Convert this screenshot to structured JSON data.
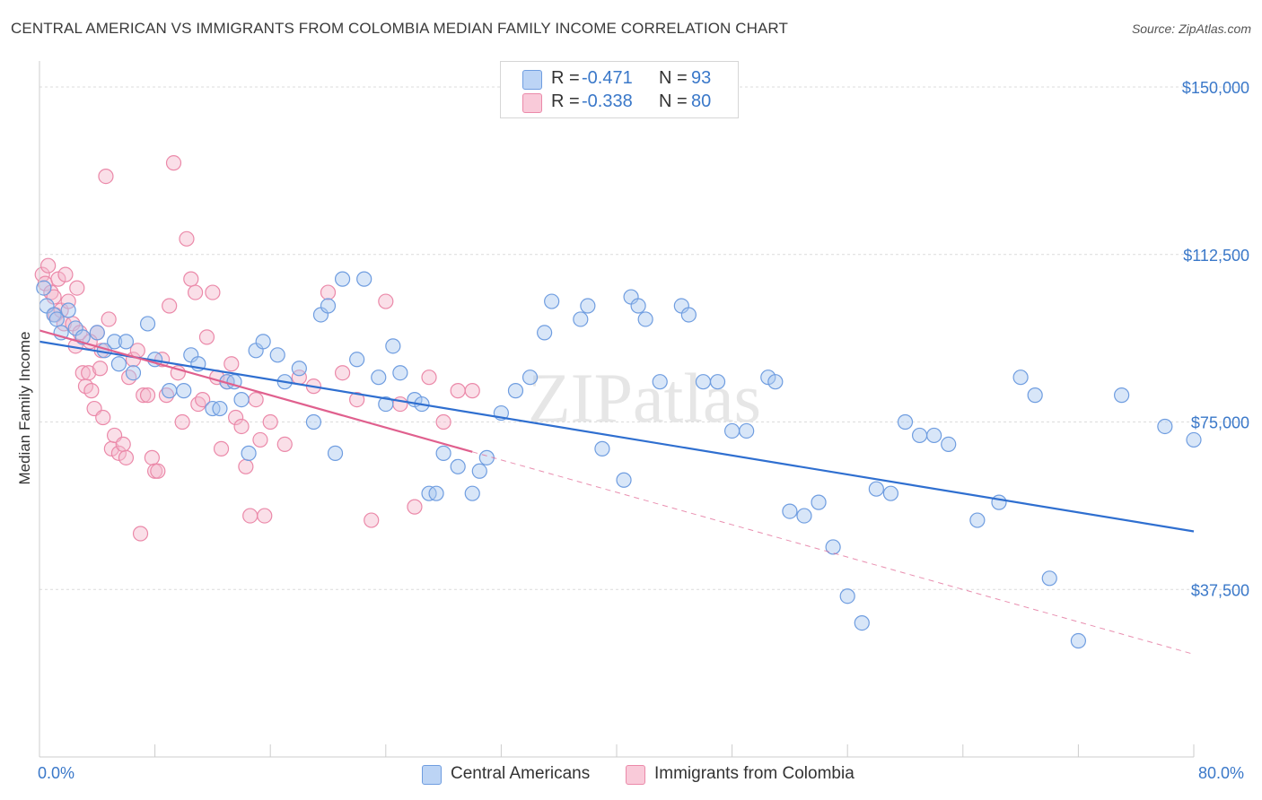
{
  "title": "CENTRAL AMERICAN VS IMMIGRANTS FROM COLOMBIA MEDIAN FAMILY INCOME CORRELATION CHART",
  "source": "Source: ZipAtlas.com",
  "watermark": "ZIPatlas",
  "legend": {
    "r_label": "R =",
    "n_label": "N =",
    "entries": [
      {
        "r": "-0.471",
        "n": "93"
      },
      {
        "r": "-0.338",
        "n": "80"
      }
    ]
  },
  "colors": {
    "blue_fill": "#a9c8f0",
    "blue_stroke": "#6f9de0",
    "blue_line": "#2f6fd0",
    "pink_fill": "#f5b8cc",
    "pink_stroke": "#eb89a9",
    "pink_line": "#e0608e",
    "axis_text": "#3a78c9"
  },
  "chart_data": {
    "type": "scatter",
    "xlabel": "",
    "ylabel": "Median Family Income",
    "xlim": [
      0,
      80
    ],
    "ylim": [
      0,
      150000
    ],
    "x_tick_labels": [
      "0.0%",
      "80.0%"
    ],
    "y_ticks": [
      37500,
      75000,
      112500,
      150000
    ],
    "y_tick_labels": [
      "$37,500",
      "$75,000",
      "$112,500",
      "$150,000"
    ],
    "grid": "horizontal dashed",
    "legend_position": "top-center",
    "series": [
      {
        "name": "Central Americans",
        "color": "#6f9de0",
        "trend": {
          "x": [
            0,
            80
          ],
          "y": [
            93000,
            50500
          ],
          "dashed_from": null
        },
        "points": [
          [
            0.3,
            105000
          ],
          [
            0.5,
            101000
          ],
          [
            1.0,
            99000
          ],
          [
            1.2,
            98000
          ],
          [
            1.5,
            95000
          ],
          [
            2.0,
            100000
          ],
          [
            2.5,
            96000
          ],
          [
            3.0,
            94000
          ],
          [
            4.0,
            95000
          ],
          [
            4.5,
            91000
          ],
          [
            5.2,
            93000
          ],
          [
            5.5,
            88000
          ],
          [
            6.0,
            93000
          ],
          [
            6.5,
            86000
          ],
          [
            7.5,
            97000
          ],
          [
            8.0,
            89000
          ],
          [
            9.0,
            82000
          ],
          [
            10.0,
            82000
          ],
          [
            10.5,
            90000
          ],
          [
            11.0,
            88000
          ],
          [
            12.0,
            78000
          ],
          [
            12.5,
            78000
          ],
          [
            13.0,
            84000
          ],
          [
            13.5,
            84000
          ],
          [
            14.0,
            80000
          ],
          [
            14.5,
            68000
          ],
          [
            15.0,
            91000
          ],
          [
            15.5,
            93000
          ],
          [
            16.5,
            90000
          ],
          [
            17.0,
            84000
          ],
          [
            18.0,
            87000
          ],
          [
            19.0,
            75000
          ],
          [
            19.5,
            99000
          ],
          [
            20.0,
            101000
          ],
          [
            20.5,
            68000
          ],
          [
            21.0,
            107000
          ],
          [
            22.0,
            89000
          ],
          [
            22.5,
            107000
          ],
          [
            23.5,
            85000
          ],
          [
            24.0,
            79000
          ],
          [
            24.5,
            92000
          ],
          [
            25.0,
            86000
          ],
          [
            26.0,
            80000
          ],
          [
            26.5,
            79000
          ],
          [
            27.0,
            59000
          ],
          [
            27.5,
            59000
          ],
          [
            28.0,
            68000
          ],
          [
            29.0,
            65000
          ],
          [
            30.0,
            59000
          ],
          [
            30.5,
            64000
          ],
          [
            31.0,
            67000
          ],
          [
            32.0,
            77000
          ],
          [
            33.0,
            82000
          ],
          [
            34.0,
            85000
          ],
          [
            35.0,
            95000
          ],
          [
            35.5,
            102000
          ],
          [
            37.5,
            98000
          ],
          [
            38.0,
            101000
          ],
          [
            39.0,
            69000
          ],
          [
            40.5,
            62000
          ],
          [
            41.0,
            103000
          ],
          [
            41.5,
            101000
          ],
          [
            42.0,
            98000
          ],
          [
            43.0,
            84000
          ],
          [
            44.5,
            101000
          ],
          [
            45.0,
            99000
          ],
          [
            46.0,
            84000
          ],
          [
            47.0,
            84000
          ],
          [
            48.0,
            73000
          ],
          [
            49.0,
            73000
          ],
          [
            50.5,
            85000
          ],
          [
            51.0,
            84000
          ],
          [
            52.0,
            55000
          ],
          [
            53.0,
            54000
          ],
          [
            54.0,
            57000
          ],
          [
            55.0,
            47000
          ],
          [
            56.0,
            36000
          ],
          [
            57.0,
            30000
          ],
          [
            58.0,
            60000
          ],
          [
            59.0,
            59000
          ],
          [
            60.0,
            75000
          ],
          [
            61.0,
            72000
          ],
          [
            62.0,
            72000
          ],
          [
            63.0,
            70000
          ],
          [
            65.0,
            53000
          ],
          [
            66.5,
            57000
          ],
          [
            68.0,
            85000
          ],
          [
            69.0,
            81000
          ],
          [
            70.0,
            40000
          ],
          [
            72.0,
            26000
          ],
          [
            75.0,
            81000
          ],
          [
            78.0,
            74000
          ],
          [
            80.0,
            71000
          ]
        ]
      },
      {
        "name": "Immigrants from Colombia",
        "color": "#eb89a9",
        "trend": {
          "x": [
            0,
            80
          ],
          "y": [
            95500,
            23000
          ],
          "solid_until": 30
        },
        "points": [
          [
            0.2,
            108000
          ],
          [
            0.4,
            106000
          ],
          [
            0.6,
            110000
          ],
          [
            0.8,
            104000
          ],
          [
            1.0,
            103000
          ],
          [
            1.1,
            99000
          ],
          [
            1.3,
            107000
          ],
          [
            1.5,
            100000
          ],
          [
            1.7,
            97000
          ],
          [
            2.0,
            102000
          ],
          [
            2.3,
            97000
          ],
          [
            2.5,
            92000
          ],
          [
            2.8,
            95000
          ],
          [
            3.0,
            86000
          ],
          [
            3.2,
            83000
          ],
          [
            3.4,
            86000
          ],
          [
            3.6,
            82000
          ],
          [
            3.8,
            78000
          ],
          [
            4.0,
            95000
          ],
          [
            4.2,
            87000
          ],
          [
            4.4,
            76000
          ],
          [
            4.6,
            130000
          ],
          [
            4.8,
            98000
          ],
          [
            5.0,
            69000
          ],
          [
            5.2,
            72000
          ],
          [
            5.5,
            68000
          ],
          [
            5.8,
            70000
          ],
          [
            6.0,
            67000
          ],
          [
            6.2,
            85000
          ],
          [
            6.5,
            89000
          ],
          [
            6.8,
            91000
          ],
          [
            7.0,
            50000
          ],
          [
            7.2,
            81000
          ],
          [
            7.5,
            81000
          ],
          [
            7.8,
            67000
          ],
          [
            8.0,
            64000
          ],
          [
            8.2,
            64000
          ],
          [
            8.5,
            89000
          ],
          [
            8.8,
            81000
          ],
          [
            9.0,
            101000
          ],
          [
            9.3,
            133000
          ],
          [
            9.6,
            86000
          ],
          [
            9.9,
            75000
          ],
          [
            10.2,
            116000
          ],
          [
            10.5,
            107000
          ],
          [
            10.8,
            104000
          ],
          [
            11.0,
            79000
          ],
          [
            11.3,
            80000
          ],
          [
            11.6,
            94000
          ],
          [
            12.0,
            104000
          ],
          [
            12.3,
            85000
          ],
          [
            12.6,
            69000
          ],
          [
            13.0,
            84000
          ],
          [
            13.3,
            88000
          ],
          [
            13.6,
            76000
          ],
          [
            14.0,
            74000
          ],
          [
            14.3,
            65000
          ],
          [
            14.6,
            54000
          ],
          [
            15.0,
            80000
          ],
          [
            15.3,
            71000
          ],
          [
            15.6,
            54000
          ],
          [
            16.0,
            75000
          ],
          [
            17.0,
            70000
          ],
          [
            18.0,
            85000
          ],
          [
            19.0,
            83000
          ],
          [
            20.0,
            104000
          ],
          [
            21.0,
            86000
          ],
          [
            22.0,
            80000
          ],
          [
            23.0,
            53000
          ],
          [
            24.0,
            102000
          ],
          [
            25.0,
            79000
          ],
          [
            26.0,
            56000
          ],
          [
            27.0,
            85000
          ],
          [
            28.0,
            75000
          ],
          [
            29.0,
            82000
          ],
          [
            30.0,
            82000
          ],
          [
            1.8,
            108000
          ],
          [
            2.6,
            105000
          ],
          [
            3.5,
            93000
          ],
          [
            4.3,
            91000
          ]
        ]
      }
    ]
  },
  "bottom_legend": [
    "Central Americans",
    "Immigrants from Colombia"
  ]
}
